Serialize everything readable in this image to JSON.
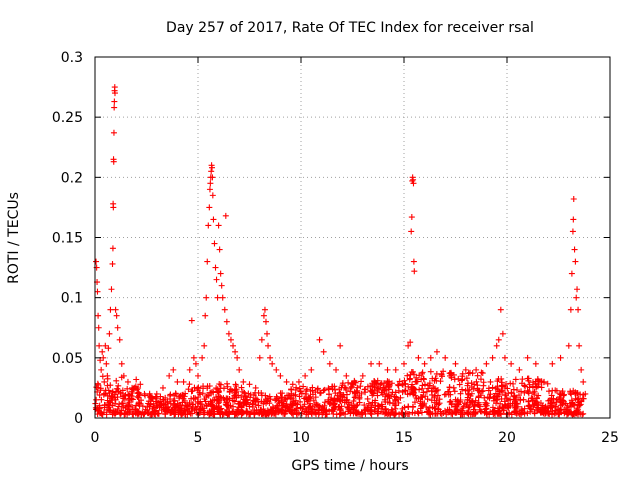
{
  "chart_data": {
    "type": "scatter",
    "title": "Day 257 of 2017, Rate Of TEC Index for receiver rsal",
    "xlabel": "GPS time / hours",
    "ylabel": "ROTI / TECUs",
    "xlim": [
      0,
      25
    ],
    "ylim": [
      0,
      0.3
    ],
    "xticks": [
      0,
      5,
      10,
      15,
      20,
      25
    ],
    "yticks": [
      0,
      0.05,
      0.1,
      0.15,
      0.2,
      0.25,
      0.3
    ],
    "xtick_labels": [
      "0",
      "5",
      "10",
      "15",
      "20",
      "25"
    ],
    "ytick_labels": [
      "0",
      "0.05",
      "0.1",
      "0.15",
      "0.2",
      "0.25",
      "0.3"
    ],
    "grid": true,
    "legend": false,
    "marker": "plus",
    "color": "#ff0000",
    "series": [
      {
        "points": [
          [
            0.02,
            0.012
          ],
          [
            0.05,
            0.13
          ],
          [
            0.08,
            0.125
          ],
          [
            0.1,
            0.113
          ],
          [
            0.12,
            0.105
          ],
          [
            0.15,
            0.085
          ],
          [
            0.18,
            0.075
          ],
          [
            0.2,
            0.06
          ],
          [
            0.25,
            0.048
          ],
          [
            0.3,
            0.04
          ],
          [
            0.35,
            0.055
          ],
          [
            0.4,
            0.05
          ],
          [
            0.45,
            0.03
          ],
          [
            0.5,
            0.06
          ],
          [
            0.55,
            0.045
          ],
          [
            0.6,
            0.035
          ],
          [
            0.65,
            0.058
          ],
          [
            0.7,
            0.07
          ],
          [
            0.75,
            0.09
          ],
          [
            0.8,
            0.107
          ],
          [
            0.85,
            0.128
          ],
          [
            0.87,
            0.141
          ],
          [
            0.88,
            0.178
          ],
          [
            0.89,
            0.175
          ],
          [
            0.9,
            0.215
          ],
          [
            0.91,
            0.213
          ],
          [
            0.92,
            0.237
          ],
          [
            0.93,
            0.258
          ],
          [
            0.94,
            0.263
          ],
          [
            0.95,
            0.272
          ],
          [
            0.96,
            0.275
          ],
          [
            0.97,
            0.27
          ],
          [
            1.0,
            0.09
          ],
          [
            1.05,
            0.085
          ],
          [
            1.1,
            0.075
          ],
          [
            1.2,
            0.065
          ],
          [
            1.3,
            0.045
          ],
          [
            1.4,
            0.035
          ],
          [
            1.6,
            0.03
          ],
          [
            1.8,
            0.025
          ],
          [
            2.0,
            0.032
          ],
          [
            2.2,
            0.028
          ],
          [
            2.4,
            0.02
          ],
          [
            2.7,
            0.018
          ],
          [
            3.0,
            0.02
          ],
          [
            3.3,
            0.025
          ],
          [
            3.6,
            0.035
          ],
          [
            3.8,
            0.04
          ],
          [
            4.0,
            0.03
          ],
          [
            4.3,
            0.03
          ],
          [
            4.6,
            0.04
          ],
          [
            4.7,
            0.081
          ],
          [
            4.8,
            0.05
          ],
          [
            4.9,
            0.045
          ],
          [
            5.0,
            0.035
          ],
          [
            5.2,
            0.05
          ],
          [
            5.3,
            0.06
          ],
          [
            5.35,
            0.085
          ],
          [
            5.4,
            0.1
          ],
          [
            5.45,
            0.13
          ],
          [
            5.5,
            0.16
          ],
          [
            5.55,
            0.175
          ],
          [
            5.58,
            0.19
          ],
          [
            5.6,
            0.195
          ],
          [
            5.62,
            0.2
          ],
          [
            5.64,
            0.205
          ],
          [
            5.66,
            0.21
          ],
          [
            5.68,
            0.208
          ],
          [
            5.7,
            0.2
          ],
          [
            5.72,
            0.185
          ],
          [
            5.75,
            0.165
          ],
          [
            5.8,
            0.145
          ],
          [
            5.85,
            0.125
          ],
          [
            5.9,
            0.115
          ],
          [
            5.95,
            0.1
          ],
          [
            6.0,
            0.16
          ],
          [
            6.05,
            0.14
          ],
          [
            6.1,
            0.12
          ],
          [
            6.15,
            0.11
          ],
          [
            6.2,
            0.1
          ],
          [
            6.3,
            0.09
          ],
          [
            6.35,
            0.168
          ],
          [
            6.4,
            0.08
          ],
          [
            6.5,
            0.07
          ],
          [
            6.6,
            0.065
          ],
          [
            6.7,
            0.06
          ],
          [
            6.8,
            0.055
          ],
          [
            6.9,
            0.05
          ],
          [
            7.0,
            0.04
          ],
          [
            7.2,
            0.03
          ],
          [
            7.5,
            0.028
          ],
          [
            7.8,
            0.025
          ],
          [
            8.0,
            0.05
          ],
          [
            8.1,
            0.065
          ],
          [
            8.2,
            0.085
          ],
          [
            8.25,
            0.09
          ],
          [
            8.3,
            0.08
          ],
          [
            8.35,
            0.07
          ],
          [
            8.4,
            0.06
          ],
          [
            8.5,
            0.05
          ],
          [
            8.6,
            0.045
          ],
          [
            8.8,
            0.04
          ],
          [
            9.0,
            0.035
          ],
          [
            9.3,
            0.03
          ],
          [
            9.6,
            0.028
          ],
          [
            9.9,
            0.03
          ],
          [
            10.2,
            0.035
          ],
          [
            10.5,
            0.04
          ],
          [
            10.9,
            0.065
          ],
          [
            11.1,
            0.055
          ],
          [
            11.4,
            0.045
          ],
          [
            11.7,
            0.04
          ],
          [
            11.9,
            0.06
          ],
          [
            12.2,
            0.035
          ],
          [
            12.6,
            0.03
          ],
          [
            13.0,
            0.035
          ],
          [
            13.4,
            0.045
          ],
          [
            13.8,
            0.045
          ],
          [
            14.2,
            0.04
          ],
          [
            14.6,
            0.04
          ],
          [
            15.0,
            0.045
          ],
          [
            15.2,
            0.06
          ],
          [
            15.3,
            0.063
          ],
          [
            15.35,
            0.155
          ],
          [
            15.38,
            0.167
          ],
          [
            15.4,
            0.197
          ],
          [
            15.42,
            0.2
          ],
          [
            15.44,
            0.198
          ],
          [
            15.46,
            0.195
          ],
          [
            15.48,
            0.13
          ],
          [
            15.5,
            0.122
          ],
          [
            15.7,
            0.05
          ],
          [
            16.0,
            0.045
          ],
          [
            16.3,
            0.05
          ],
          [
            16.6,
            0.055
          ],
          [
            17.0,
            0.05
          ],
          [
            17.5,
            0.045
          ],
          [
            18.0,
            0.04
          ],
          [
            18.5,
            0.04
          ],
          [
            19.0,
            0.045
          ],
          [
            19.3,
            0.05
          ],
          [
            19.5,
            0.06
          ],
          [
            19.6,
            0.065
          ],
          [
            19.7,
            0.09
          ],
          [
            19.8,
            0.07
          ],
          [
            19.9,
            0.05
          ],
          [
            20.2,
            0.045
          ],
          [
            20.6,
            0.04
          ],
          [
            21.0,
            0.05
          ],
          [
            21.4,
            0.045
          ],
          [
            21.8,
            0.03
          ],
          [
            22.2,
            0.045
          ],
          [
            22.6,
            0.05
          ],
          [
            23.0,
            0.06
          ],
          [
            23.1,
            0.09
          ],
          [
            23.15,
            0.12
          ],
          [
            23.2,
            0.155
          ],
          [
            23.22,
            0.165
          ],
          [
            23.24,
            0.182
          ],
          [
            23.28,
            0.14
          ],
          [
            23.32,
            0.13
          ],
          [
            23.36,
            0.1
          ],
          [
            23.4,
            0.107
          ],
          [
            23.45,
            0.09
          ],
          [
            23.5,
            0.06
          ],
          [
            23.6,
            0.04
          ],
          [
            23.7,
            0.03
          ],
          [
            23.8,
            0.02
          ]
        ]
      }
    ]
  }
}
